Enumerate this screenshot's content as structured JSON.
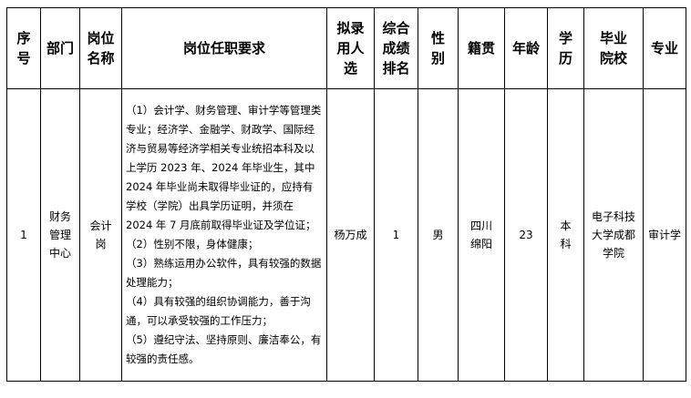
{
  "headers": [
    "序号",
    "部门",
    "岗位名称",
    "岗位任职要求",
    "拟录用人选",
    "综合成绩排名",
    "性别",
    "籍贯",
    "年龄",
    "学历",
    "毕业院校",
    "专业"
  ],
  "row": {
    "index": "1",
    "department": "财务管理中心",
    "position": "会计岗",
    "requirements": [
      "（1）会计学、财务管理、审计学等管理类专业；经济学、金融学、财政学、国际经济与贸易等经济学相关专业统招本科及以上学历 2023 年、2024 年毕业生，其中 2024 年毕业尚未取得毕业证的，应持有学校（学院）出具学历证明，并须在 2024 年 7 月底前取得毕业证及学位证；",
      "（2）性别不限，身体健康；",
      "（3）熟练运用办公软件，具有较强的数据处理能力；",
      "（4）具有较强的组织协调能力，善于沟通，可以承受较强的工作压力；",
      "（5）遵纪守法、坚持原则、廉洁奉公，有较强的责任感。"
    ],
    "candidate": "杨万成",
    "rank": "1",
    "gender": "男",
    "origin": "四川绵阳",
    "age": "23",
    "education": "本科",
    "school": "电子科技大学成都学院",
    "major": "审计学"
  }
}
